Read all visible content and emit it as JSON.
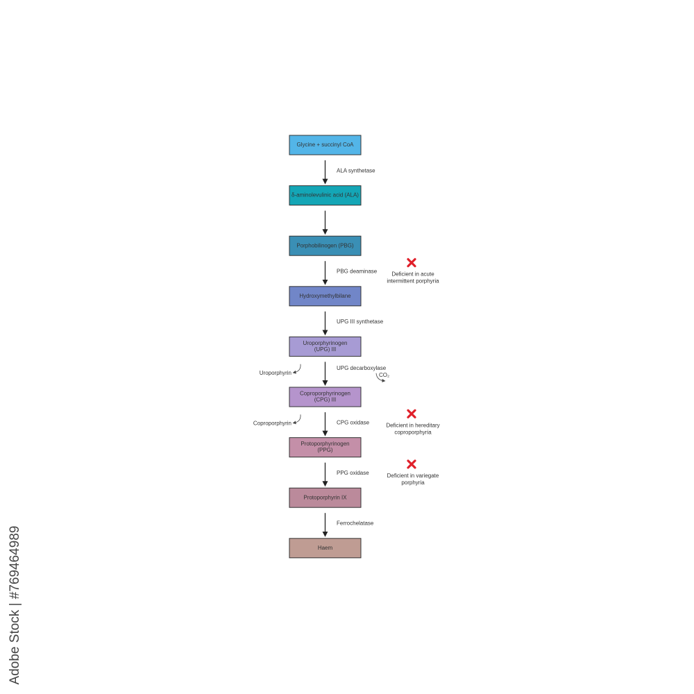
{
  "title_nodes": [
    {
      "lines": [
        "Glycine + succinyl CoA"
      ],
      "color": "#53b5e8",
      "enzyme": "ALA synthetase"
    },
    {
      "lines": [
        "δ-aminolevulinic acid (ALA)"
      ],
      "color": "#14a6b6"
    },
    {
      "lines": [
        "Porphobilinogen (PBG)"
      ],
      "color": "#3a8fb5",
      "enzyme": "PBG deaminase",
      "deficiency": [
        "Deficient in acute",
        "intermittent porphyria"
      ]
    },
    {
      "lines": [
        "Hydroxymethylbilane"
      ],
      "color": "#7186c8",
      "enzyme": "UPG III synthetase"
    },
    {
      "lines": [
        "Uroporphyrinogen",
        "(UPG) III"
      ],
      "color": "#a79bd4",
      "enzyme": "UPG decarboxylase",
      "side_product": "Uroporphyrin",
      "byproduct": "CO₂"
    },
    {
      "lines": [
        "Coproporphyrinogen",
        "(CPG) III"
      ],
      "color": "#b594cc",
      "enzyme": "CPG oxidase",
      "side_product": "Coproporphyrin",
      "deficiency": [
        "Deficient in hereditary",
        "coproporphyria"
      ]
    },
    {
      "lines": [
        "Protoporphyrinogen",
        "(PPG)"
      ],
      "color": "#c48fa8",
      "enzyme": "PPG oxidase",
      "deficiency": [
        "Deficient in variegate",
        "porphyria"
      ]
    },
    {
      "lines": [
        "Protoporphyrin IX"
      ],
      "color": "#bb8a9b",
      "enzyme": "Ferrochelatase"
    },
    {
      "lines": [
        "Haem"
      ],
      "color": "#bf9c93"
    }
  ],
  "watermark": "Adobe Stock | #769464989"
}
